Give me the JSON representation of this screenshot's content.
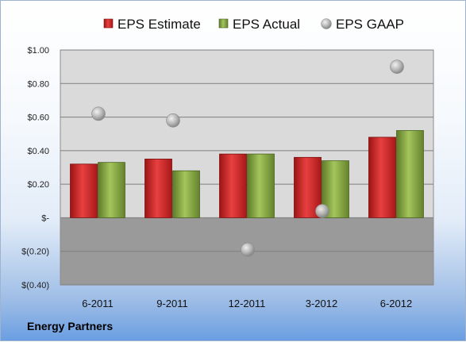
{
  "company": "Energy Partners",
  "chart_data": {
    "type": "bar",
    "categories": [
      "6-2011",
      "9-2011",
      "12-2011",
      "3-2012",
      "6-2012"
    ],
    "series": [
      {
        "name": "EPS Estimate",
        "kind": "bar",
        "color": "#e0302e",
        "values": [
          0.32,
          0.35,
          0.38,
          0.36,
          0.48
        ]
      },
      {
        "name": "EPS Actual",
        "kind": "bar",
        "color": "#8fb04a",
        "values": [
          0.33,
          0.28,
          0.38,
          0.34,
          0.52
        ]
      },
      {
        "name": "EPS GAAP",
        "kind": "marker",
        "color": "#b0b0b0",
        "values": [
          0.62,
          0.58,
          -0.19,
          0.04,
          0.9
        ]
      }
    ],
    "ylim": [
      -0.4,
      1.0
    ],
    "yticks": [
      {
        "value": 1.0,
        "label": "$1.00"
      },
      {
        "value": 0.8,
        "label": "$0.80"
      },
      {
        "value": 0.6,
        "label": "$0.60"
      },
      {
        "value": 0.4,
        "label": "$0.40"
      },
      {
        "value": 0.2,
        "label": "$0.20"
      },
      {
        "value": 0.0,
        "label": "$-"
      },
      {
        "value": -0.2,
        "label": "$(0.20)"
      },
      {
        "value": -0.4,
        "label": "$(0.40)"
      }
    ],
    "grid": true,
    "legend_position": "top"
  }
}
